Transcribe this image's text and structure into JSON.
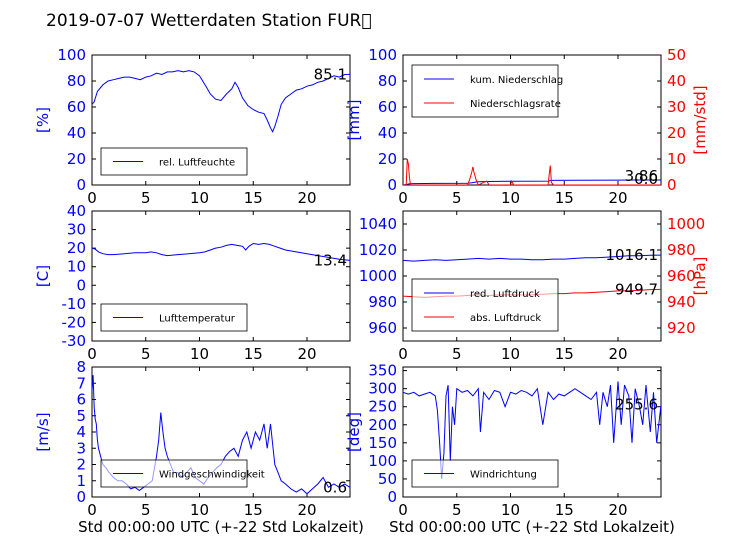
{
  "page": {
    "title": "2019-07-07 Wetterdaten Station FUR\u0000"
  },
  "colors": {
    "primary": "#0000ff",
    "secondary": "#ff0000",
    "axis": "#000000"
  },
  "chart_data": [
    {
      "id": "humidity",
      "type": "line",
      "ylabel": "[%]",
      "xlim": [
        0,
        24
      ],
      "ylim": [
        0,
        100
      ],
      "yticks": [
        0,
        20,
        40,
        60,
        80,
        100
      ],
      "xticks": [
        0,
        5,
        10,
        15,
        20
      ],
      "show_xlabel": false,
      "last_value": "85.1",
      "legend": {
        "placement": "lower-left"
      },
      "series": [
        {
          "name": "rel. Luftfeuchte",
          "axis": "left",
          "color": "#0000ff",
          "x": [
            0,
            0.2,
            0.5,
            1,
            1.5,
            2,
            2.5,
            3,
            3.5,
            4,
            4.5,
            5,
            5.5,
            6,
            6.5,
            7,
            7.5,
            8,
            8.5,
            9,
            9.5,
            10,
            10.3,
            10.6,
            11,
            11.5,
            12,
            12.5,
            13,
            13.3,
            13.6,
            14,
            14.5,
            15,
            15.5,
            16,
            16.3,
            16.6,
            16.8,
            17,
            17.3,
            17.6,
            18,
            18.5,
            19,
            19.5,
            20,
            20.5,
            21,
            21.5,
            22,
            22.5,
            23,
            23.5,
            24
          ],
          "y": [
            62,
            64,
            72,
            77,
            80,
            81,
            82,
            83,
            83,
            82,
            81,
            83,
            84,
            86,
            85,
            87,
            87,
            88,
            87,
            88,
            87,
            84,
            80,
            76,
            70,
            66,
            65,
            70,
            74,
            79,
            75,
            67,
            61,
            58,
            56,
            55,
            50,
            44,
            41,
            45,
            53,
            62,
            67,
            70,
            73,
            74,
            76,
            77,
            79,
            80,
            82,
            84,
            83,
            85,
            85.1
          ]
        }
      ]
    },
    {
      "id": "precipitation",
      "type": "line",
      "ylabel": "[mm]",
      "ylabel_right": "[mm/std]",
      "xlim": [
        0,
        24
      ],
      "ylim": [
        0,
        100
      ],
      "ylim_right": [
        0,
        50
      ],
      "yticks": [
        0,
        20,
        40,
        60,
        80,
        100
      ],
      "yticks_right": [
        0,
        10,
        20,
        30,
        40,
        50
      ],
      "xticks": [
        0,
        5,
        10,
        15,
        20
      ],
      "show_xlabel": false,
      "last_value": "3.86",
      "last_value_right": "0.0",
      "legend": {
        "placement": "upper-left"
      },
      "series": [
        {
          "name": "kum. Niederschlag",
          "axis": "left",
          "color": "#0000ff",
          "x": [
            0,
            0.4,
            0.6,
            1,
            3,
            6,
            6.4,
            6.8,
            7,
            8,
            10,
            13.5,
            13.8,
            16,
            20,
            24
          ],
          "y": [
            0,
            0.5,
            1.0,
            1.1,
            1.2,
            1.3,
            1.8,
            2.3,
            2.5,
            2.7,
            2.9,
            3.0,
            3.5,
            3.7,
            3.8,
            3.86
          ]
        },
        {
          "name": "Niederschlagsrate",
          "axis": "right",
          "color": "#ff0000",
          "x": [
            0,
            0.3,
            0.4,
            0.5,
            0.6,
            0.7,
            1,
            6,
            6.2,
            6.4,
            6.5,
            6.6,
            6.8,
            7,
            7.5,
            7.8,
            8,
            8.3,
            10,
            10.1,
            10.3,
            13.5,
            13.6,
            13.7,
            13.8,
            14,
            24
          ],
          "y": [
            0,
            0,
            10,
            8,
            3,
            0,
            0,
            0,
            2,
            5,
            7,
            5,
            2,
            0,
            1,
            1.5,
            0,
            0,
            0,
            1.5,
            0,
            0,
            4,
            7.5,
            1,
            0,
            0
          ]
        }
      ]
    },
    {
      "id": "temperature",
      "type": "line",
      "ylabel": "[C]",
      "xlim": [
        0,
        24
      ],
      "ylim": [
        -30,
        40
      ],
      "yticks": [
        -30,
        -20,
        -10,
        0,
        10,
        20,
        30,
        40
      ],
      "xticks": [
        0,
        5,
        10,
        15,
        20
      ],
      "show_xlabel": false,
      "last_value": "13.4",
      "legend": {
        "placement": "lower-left"
      },
      "series": [
        {
          "name": "Lufttemperatur",
          "axis": "left",
          "color": "#0000ff",
          "x": [
            0,
            0.3,
            0.6,
            1,
            1.5,
            2,
            3,
            4,
            5,
            5.5,
            6,
            6.5,
            7,
            8,
            9,
            10,
            10.5,
            11,
            11.5,
            12,
            12.5,
            13,
            13.5,
            14,
            14.3,
            14.6,
            15,
            15.5,
            16,
            16.5,
            17,
            17.5,
            18,
            19,
            20,
            21,
            22,
            23,
            24
          ],
          "y": [
            20,
            19.5,
            18,
            17,
            16.5,
            16.5,
            17,
            17.5,
            17.5,
            18,
            17.5,
            16.5,
            16,
            16.5,
            17,
            17.5,
            18,
            19,
            20,
            20.5,
            21.5,
            22,
            21.5,
            21,
            19,
            21,
            22.5,
            22,
            22.5,
            22,
            21,
            20,
            19,
            18,
            17,
            16,
            15,
            14,
            13.4
          ]
        }
      ]
    },
    {
      "id": "pressure",
      "type": "line",
      "ylabel": "",
      "ylabel_right": "[hPa]",
      "xlim": [
        0,
        24
      ],
      "ylim": [
        950,
        1050
      ],
      "ylim_right": [
        910,
        1010
      ],
      "yticks": [
        960,
        980,
        1000,
        1020,
        1040
      ],
      "yticks_right": [
        920,
        940,
        960,
        980,
        1000
      ],
      "xticks": [
        0,
        5,
        10,
        15,
        20
      ],
      "show_xlabel": false,
      "last_value": "1016.1",
      "last_value_right": "949.7",
      "legend": {
        "placement": "lower-left"
      },
      "series": [
        {
          "name": "red. Luftdruck",
          "axis": "left",
          "color": "#0000ff",
          "x": [
            0,
            1,
            2,
            3,
            4,
            5,
            6,
            7,
            8,
            9,
            10,
            11,
            12,
            13,
            14,
            15,
            16,
            17,
            18,
            19,
            20,
            21,
            22,
            23,
            24
          ],
          "y": [
            1012,
            1011.5,
            1012,
            1012.5,
            1012,
            1012.5,
            1013,
            1013.5,
            1013,
            1013.5,
            1013,
            1013,
            1012.5,
            1012.5,
            1013,
            1013,
            1013.5,
            1014,
            1014,
            1014.5,
            1015,
            1015.5,
            1015.5,
            1016,
            1016.1
          ]
        },
        {
          "name": "abs. Luftdruck",
          "axis": "right",
          "color": "#ff0000",
          "x": [
            0,
            1,
            2,
            3,
            4,
            5,
            6,
            7,
            8,
            9,
            10,
            11,
            12,
            13,
            14,
            15,
            16,
            17,
            18,
            19,
            20,
            21,
            22,
            23,
            24
          ],
          "y": [
            944.5,
            944,
            943.5,
            944,
            944.5,
            944.5,
            945,
            945.5,
            945,
            945.5,
            945.5,
            945.5,
            945.5,
            946,
            946.5,
            946.5,
            947,
            947,
            947.5,
            948,
            948.5,
            948.5,
            949,
            949.5,
            949.7
          ]
        }
      ]
    },
    {
      "id": "wind-speed",
      "type": "line",
      "ylabel": "[m/s]",
      "xlim": [
        0,
        24
      ],
      "ylim": [
        0,
        8
      ],
      "yticks": [
        0,
        1,
        2,
        3,
        4,
        5,
        6,
        7,
        8
      ],
      "xticks": [
        0,
        5,
        10,
        15,
        20
      ],
      "show_xlabel": true,
      "xlabel": "Std 00:00:00 UTC (+-22 Std Lokalzeit)",
      "last_value": "0.6",
      "legend": {
        "placement": "lower-left"
      },
      "series": [
        {
          "name": "Windgeschwindigkeit",
          "axis": "left",
          "color": "#0000ff",
          "x": [
            0,
            0.1,
            0.2,
            0.3,
            0.4,
            0.5,
            0.6,
            0.8,
            1,
            1.3,
            1.6,
            2,
            2.4,
            2.8,
            3.2,
            3.6,
            4,
            4.4,
            4.8,
            5.2,
            5.6,
            6,
            6.2,
            6.4,
            6.6,
            6.8,
            7,
            7.3,
            7.6,
            8,
            8.4,
            8.8,
            9.2,
            9.6,
            10,
            10.4,
            10.8,
            11.2,
            11.6,
            12,
            12.4,
            12.8,
            13.2,
            13.6,
            14,
            14.4,
            14.8,
            15.2,
            15.6,
            16,
            16.3,
            16.6,
            17,
            17.3,
            17.6,
            18,
            18.5,
            19,
            19.5,
            20,
            20.5,
            21,
            21.5,
            22,
            22.5,
            23,
            23.5,
            24
          ],
          "y": [
            6.5,
            7.5,
            5.5,
            4.8,
            4.5,
            3.5,
            3.0,
            2.5,
            2.0,
            1.8,
            1.5,
            1.2,
            1.0,
            1.0,
            0.8,
            0.5,
            0.6,
            0.4,
            0.6,
            0.8,
            1.0,
            2.5,
            3.5,
            5.2,
            4.0,
            3.0,
            2.5,
            2.0,
            1.5,
            1.5,
            1.2,
            1.5,
            1.8,
            1.2,
            1.0,
            0.8,
            1.2,
            1.5,
            1.8,
            2.0,
            2.5,
            2.8,
            3.0,
            2.5,
            3.5,
            4.0,
            3.0,
            4.0,
            3.5,
            4.5,
            3.0,
            4.5,
            2.0,
            1.5,
            1.0,
            0.8,
            0.5,
            0.3,
            0.5,
            0.2,
            0.5,
            0.8,
            1.2,
            0.6,
            0.8,
            0.6,
            0.8,
            0.6
          ]
        }
      ]
    },
    {
      "id": "wind-direction",
      "type": "line",
      "ylabel": "[deg]",
      "xlim": [
        0,
        24
      ],
      "ylim": [
        0,
        360
      ],
      "yticks": [
        0,
        50,
        100,
        150,
        200,
        250,
        300,
        350
      ],
      "xticks": [
        0,
        5,
        10,
        15,
        20
      ],
      "show_xlabel": true,
      "xlabel": "Std 00:00:00 UTC (+-22 Std Lokalzeit)",
      "last_value": "255.6",
      "legend": {
        "placement": "lower-left"
      },
      "series": [
        {
          "name": "Windrichtung",
          "axis": "left",
          "color": "#0000ff",
          "x": [
            0,
            0.5,
            1,
            1.5,
            2,
            2.5,
            3,
            3.2,
            3.4,
            3.6,
            3.8,
            4,
            4.2,
            4.4,
            4.6,
            4.8,
            5,
            5.5,
            6,
            6.5,
            7,
            7.2,
            7.5,
            8,
            8.5,
            9,
            9.5,
            10,
            10.5,
            11,
            11.5,
            12,
            12.5,
            13,
            13.5,
            14,
            14.5,
            15,
            15.5,
            16,
            16.5,
            17,
            17.5,
            18,
            18.3,
            18.6,
            19,
            19.3,
            19.6,
            20,
            20.3,
            20.6,
            21,
            21.3,
            21.6,
            22,
            22.3,
            22.6,
            23,
            23.3,
            23.6,
            24
          ],
          "y": [
            290,
            285,
            290,
            280,
            285,
            290,
            280,
            240,
            150,
            50,
            120,
            280,
            310,
            100,
            250,
            200,
            300,
            290,
            295,
            280,
            300,
            180,
            290,
            270,
            295,
            290,
            250,
            290,
            285,
            295,
            290,
            280,
            300,
            200,
            290,
            270,
            285,
            280,
            290,
            300,
            290,
            280,
            270,
            290,
            200,
            290,
            250,
            310,
            150,
            320,
            200,
            310,
            280,
            150,
            300,
            250,
            200,
            310,
            180,
            290,
            150,
            255.6
          ]
        }
      ]
    }
  ]
}
